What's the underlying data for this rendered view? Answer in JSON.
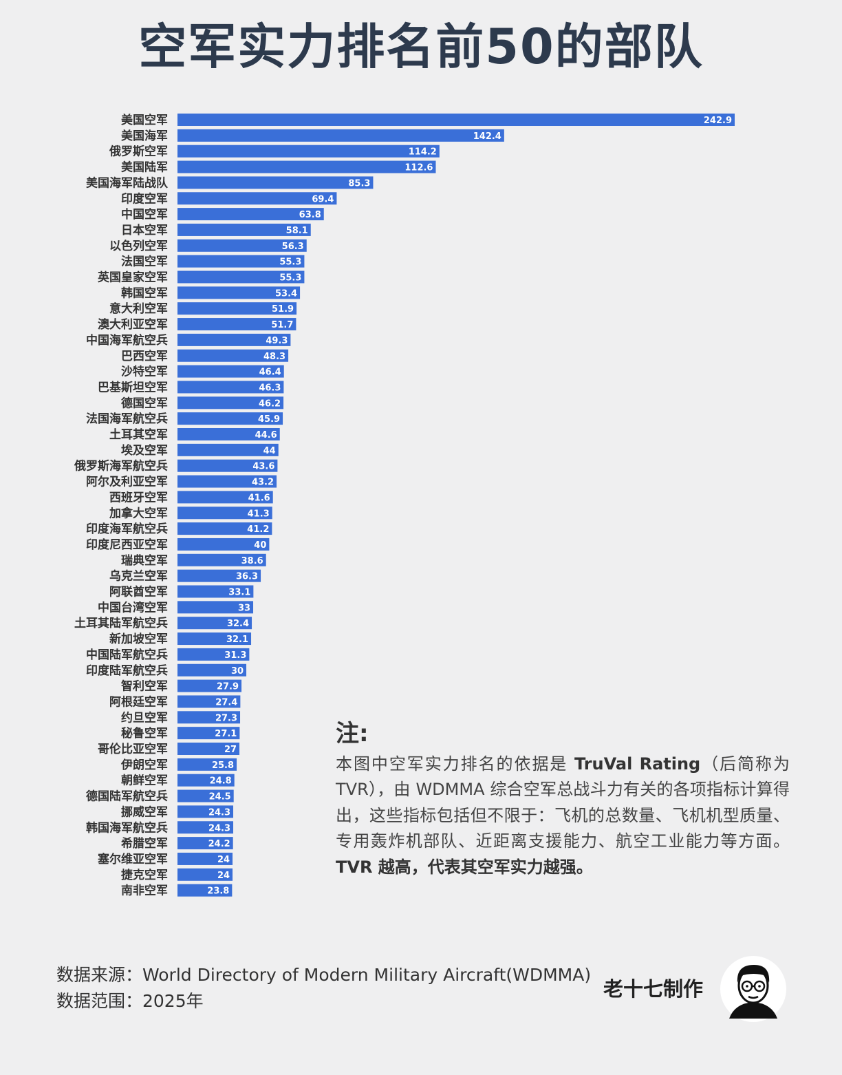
{
  "title": "空军实力排名前50的部队",
  "chart_data": {
    "type": "bar",
    "orientation": "horizontal",
    "categories": [
      "美国空军",
      "美国海军",
      "俄罗斯空军",
      "美国陆军",
      "美国海军陆战队",
      "印度空军",
      "中国空军",
      "日本空军",
      "以色列空军",
      "法国空军",
      "英国皇家空军",
      "韩国空军",
      "意大利空军",
      "澳大利亚空军",
      "中国海军航空兵",
      "巴西空军",
      "沙特空军",
      "巴基斯坦空军",
      "德国空军",
      "法国海军航空兵",
      "土耳其空军",
      "埃及空军",
      "俄罗斯海军航空兵",
      "阿尔及利亚空军",
      "西班牙空军",
      "加拿大空军",
      "印度海军航空兵",
      "印度尼西亚空军",
      "瑞典空军",
      "乌克兰空军",
      "阿联酋空军",
      "中国台湾空军",
      "土耳其陆军航空兵",
      "新加坡空军",
      "中国陆军航空兵",
      "印度陆军航空兵",
      "智利空军",
      "阿根廷空军",
      "约旦空军",
      "秘鲁空军",
      "哥伦比亚空军",
      "伊朗空军",
      "朝鲜空军",
      "德国陆军航空兵",
      "挪威空军",
      "韩国海军航空兵",
      "希腊空军",
      "塞尔维亚空军",
      "捷克空军",
      "南非空军"
    ],
    "values": [
      242.9,
      142.4,
      114.2,
      112.6,
      85.3,
      69.4,
      63.8,
      58.1,
      56.3,
      55.3,
      55.3,
      53.4,
      51.9,
      51.7,
      49.3,
      48.3,
      46.4,
      46.3,
      46.2,
      45.9,
      44.6,
      44,
      43.6,
      43.2,
      41.6,
      41.3,
      41.2,
      40,
      38.6,
      36.3,
      33.1,
      33,
      32.4,
      32.1,
      31.3,
      30,
      27.9,
      27.4,
      27.3,
      27.1,
      27,
      25.8,
      24.8,
      24.5,
      24.3,
      24.3,
      24.2,
      24,
      24,
      23.8
    ],
    "bar_color": "#3a6fd8",
    "label_color": "#ffffff",
    "xlim": [
      0,
      242.9
    ]
  },
  "note": {
    "heading": "注:",
    "line1_pre": "本图中空军实力排名的依据是 ",
    "line1_bold": "TruVal Rating",
    "line1_post": "（后简称为TVR），由 WDMMA 综合空军总战斗力有关的各项指标计算得出，这些指标包括但不限于：飞机的总数量、飞机机型质量、专用轰炸机部队、近距离支援能力、航空工业能力等方面。",
    "conclusion": "TVR 越高，代表其空军实力越强。"
  },
  "source": {
    "label": "数据来源：World Directory of Modern Military Aircraft(WDMMA)",
    "range": "数据范围：2025年"
  },
  "author": "老十七制作",
  "avatar_icon": "cartoon-avatar-with-glasses"
}
